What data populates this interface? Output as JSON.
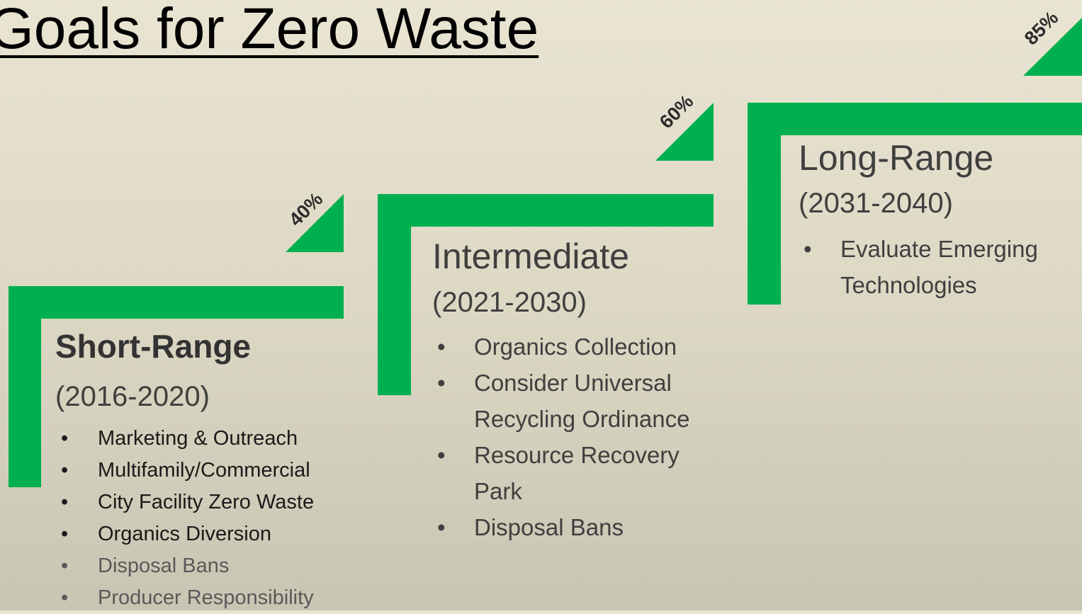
{
  "header": {
    "title": "Goals for Zero Waste"
  },
  "stages": [
    {
      "goal": "40%",
      "name": "Short-Range",
      "years": "(2016-2020)",
      "items": [
        "Marketing & Outreach",
        "Multifamily/Commercial",
        "City Facility Zero Waste",
        "Organics Diversion",
        "Disposal Bans",
        "Producer Responsibility"
      ]
    },
    {
      "goal": "60%",
      "name": "Intermediate",
      "years": "(2021-2030)",
      "items": [
        "Organics Collection",
        "Consider Universal Recycling Ordinance",
        "Resource Recovery Park",
        "Disposal Bans"
      ]
    },
    {
      "goal": "85%",
      "name": "Long-Range",
      "years": "(2031-2040)",
      "items": [
        "Evaluate Emerging Technologies"
      ]
    }
  ]
}
